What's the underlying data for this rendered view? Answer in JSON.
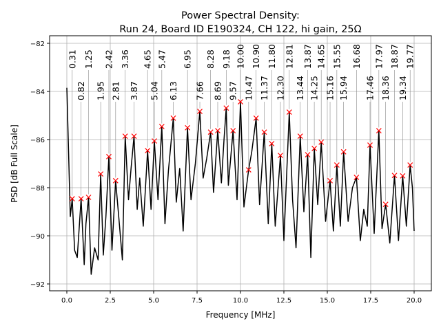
{
  "chart_data": {
    "type": "line",
    "title": "Power Spectral Density:",
    "subtitle": "Run 24, Board ID E190324, CH 122, hi gain, 25Ω",
    "xlabel": "Frequency [MHz]",
    "ylabel": "PSD [dB Full Scale]",
    "xlim": [
      -0.8,
      21.0
    ],
    "ylim": [
      -92.25,
      -81.7
    ],
    "grid": true,
    "xticks": [
      0.0,
      2.5,
      5.0,
      7.5,
      10.0,
      12.5,
      15.0,
      17.5,
      20.0
    ],
    "xtick_labels": [
      "0.0",
      "2.5",
      "5.0",
      "7.5",
      "10.0",
      "12.5",
      "15.0",
      "17.5",
      "20.0"
    ],
    "yticks": [
      -82,
      -84,
      -86,
      -88,
      -90,
      -92
    ],
    "ytick_labels": [
      "−82",
      "−84",
      "−86",
      "−88",
      "−90",
      "−92"
    ],
    "line_color": "#000000",
    "marker_color": "#ff0000",
    "marker": "x",
    "series": {
      "x": [
        0.0,
        0.1,
        0.2,
        0.31,
        0.45,
        0.6,
        0.82,
        1.0,
        1.1,
        1.25,
        1.4,
        1.6,
        1.8,
        1.95,
        2.1,
        2.25,
        2.42,
        2.6,
        2.81,
        3.0,
        3.2,
        3.36,
        3.55,
        3.7,
        3.87,
        4.05,
        4.2,
        4.4,
        4.65,
        4.85,
        5.04,
        5.25,
        5.47,
        5.65,
        5.85,
        6.13,
        6.3,
        6.5,
        6.7,
        6.95,
        7.15,
        7.4,
        7.66,
        7.85,
        8.05,
        8.28,
        8.45,
        8.69,
        8.9,
        9.05,
        9.18,
        9.3,
        9.57,
        9.8,
        10.0,
        10.2,
        10.47,
        10.65,
        10.9,
        11.1,
        11.37,
        11.6,
        11.8,
        12.0,
        12.3,
        12.5,
        12.81,
        13.0,
        13.2,
        13.44,
        13.65,
        13.87,
        14.05,
        14.25,
        14.45,
        14.65,
        14.9,
        15.16,
        15.35,
        15.55,
        15.75,
        15.94,
        16.2,
        16.45,
        16.68,
        16.9,
        17.1,
        17.3,
        17.46,
        17.7,
        17.97,
        18.15,
        18.36,
        18.6,
        18.87,
        19.1,
        19.34,
        19.55,
        19.77,
        19.9,
        20.0
      ],
      "y": [
        -83.85,
        -86.5,
        -89.2,
        -88.46,
        -90.6,
        -90.9,
        -88.46,
        -91.2,
        -89.5,
        -88.4,
        -91.6,
        -90.5,
        -91.0,
        -87.43,
        -90.8,
        -89.2,
        -86.71,
        -90.6,
        -87.71,
        -89.3,
        -91.0,
        -85.86,
        -88.5,
        -87.2,
        -85.86,
        -88.9,
        -87.6,
        -89.6,
        -86.46,
        -88.9,
        -86.06,
        -88.5,
        -85.46,
        -89.5,
        -87.3,
        -85.11,
        -88.6,
        -87.2,
        -89.8,
        -85.51,
        -88.5,
        -87.0,
        -84.83,
        -87.6,
        -86.8,
        -85.69,
        -88.2,
        -85.63,
        -87.8,
        -86.0,
        -84.69,
        -87.9,
        -85.63,
        -88.5,
        -84.43,
        -88.8,
        -87.26,
        -86.5,
        -85.11,
        -88.7,
        -85.69,
        -89.5,
        -86.17,
        -89.6,
        -86.66,
        -90.2,
        -84.86,
        -88.5,
        -90.5,
        -85.86,
        -89.0,
        -86.63,
        -90.9,
        -86.37,
        -88.7,
        -86.11,
        -89.4,
        -87.71,
        -89.8,
        -87.06,
        -89.6,
        -86.51,
        -89.4,
        -88.0,
        -87.57,
        -90.2,
        -88.9,
        -89.6,
        -86.23,
        -89.9,
        -85.63,
        -89.7,
        -88.69,
        -90.3,
        -87.49,
        -90.2,
        -87.51,
        -89.6,
        -87.06,
        -88.0,
        -89.8
      ]
    },
    "peaks": [
      {
        "label": "0.31",
        "x": 0.31,
        "y": -88.46
      },
      {
        "label": "0.82",
        "x": 0.82,
        "y": -88.46
      },
      {
        "label": "1.25",
        "x": 1.25,
        "y": -88.4
      },
      {
        "label": "1.95",
        "x": 1.95,
        "y": -87.43
      },
      {
        "label": "2.42",
        "x": 2.42,
        "y": -86.71
      },
      {
        "label": "2.81",
        "x": 2.81,
        "y": -87.71
      },
      {
        "label": "3.36",
        "x": 3.36,
        "y": -85.86
      },
      {
        "label": "3.87",
        "x": 3.87,
        "y": -85.86
      },
      {
        "label": "4.65",
        "x": 4.65,
        "y": -86.46
      },
      {
        "label": "5.04",
        "x": 5.04,
        "y": -86.06
      },
      {
        "label": "5.47",
        "x": 5.47,
        "y": -85.46
      },
      {
        "label": "6.13",
        "x": 6.13,
        "y": -85.11
      },
      {
        "label": "6.95",
        "x": 6.95,
        "y": -85.51
      },
      {
        "label": "7.66",
        "x": 7.66,
        "y": -84.83
      },
      {
        "label": "8.28",
        "x": 8.28,
        "y": -85.69
      },
      {
        "label": "8.69",
        "x": 8.69,
        "y": -85.63
      },
      {
        "label": "9.18",
        "x": 9.18,
        "y": -84.69
      },
      {
        "label": "9.57",
        "x": 9.57,
        "y": -85.63
      },
      {
        "label": "10.00",
        "x": 10.0,
        "y": -84.43
      },
      {
        "label": "10.47",
        "x": 10.47,
        "y": -87.26
      },
      {
        "label": "10.90",
        "x": 10.9,
        "y": -85.11
      },
      {
        "label": "11.37",
        "x": 11.37,
        "y": -85.69
      },
      {
        "label": "11.80",
        "x": 11.8,
        "y": -86.17
      },
      {
        "label": "12.30",
        "x": 12.3,
        "y": -86.66
      },
      {
        "label": "12.81",
        "x": 12.81,
        "y": -84.86
      },
      {
        "label": "13.44",
        "x": 13.44,
        "y": -85.86
      },
      {
        "label": "13.87",
        "x": 13.87,
        "y": -86.63
      },
      {
        "label": "14.25",
        "x": 14.25,
        "y": -86.37
      },
      {
        "label": "14.65",
        "x": 14.65,
        "y": -86.11
      },
      {
        "label": "15.16",
        "x": 15.16,
        "y": -87.71
      },
      {
        "label": "15.55",
        "x": 15.55,
        "y": -87.06
      },
      {
        "label": "15.94",
        "x": 15.94,
        "y": -86.51
      },
      {
        "label": "16.68",
        "x": 16.68,
        "y": -87.57
      },
      {
        "label": "17.46",
        "x": 17.46,
        "y": -86.23
      },
      {
        "label": "17.97",
        "x": 17.97,
        "y": -85.63
      },
      {
        "label": "18.36",
        "x": 18.36,
        "y": -88.69
      },
      {
        "label": "18.87",
        "x": 18.87,
        "y": -87.49
      },
      {
        "label": "19.34",
        "x": 19.34,
        "y": -87.51
      },
      {
        "label": "19.77",
        "x": 19.77,
        "y": -87.06
      }
    ]
  }
}
